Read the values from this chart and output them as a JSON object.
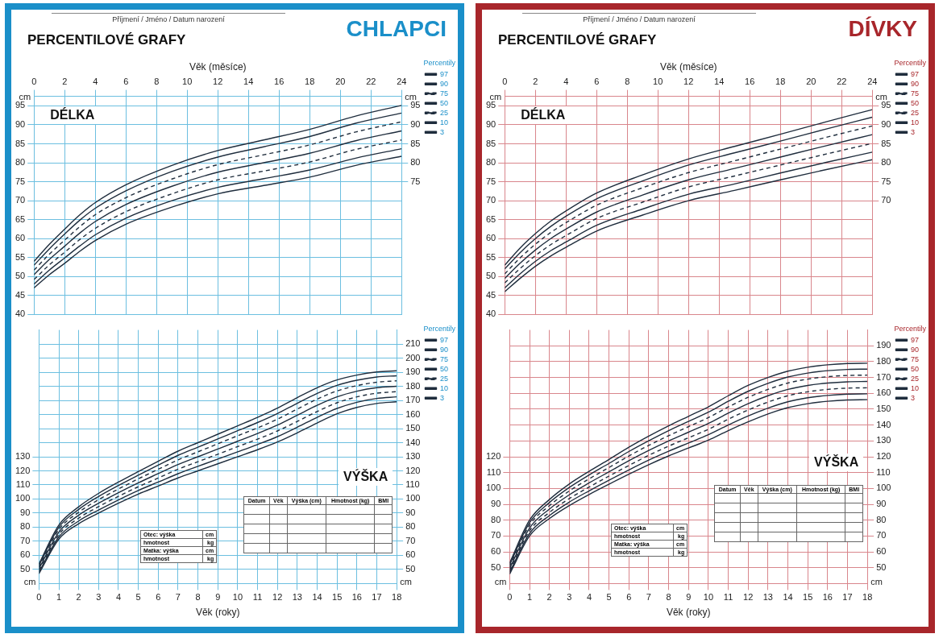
{
  "chart_data": [
    {
      "type": "line",
      "title": "PERCENTILOVÉ GRAFY",
      "subtitle": "CHLAPCI",
      "xlabel": "Věk (měsíce)",
      "ylabel": "cm",
      "y2label": "cm",
      "legend_title": "Percentily",
      "annotations": [
        "Příjmení / Jméno / Datum narození",
        "DÉLKA"
      ],
      "x": [
        0,
        1,
        2,
        3,
        4,
        6,
        9,
        12,
        15,
        18,
        21,
        24
      ],
      "xlim": [
        0,
        24
      ],
      "xticks": [
        0,
        2,
        4,
        6,
        8,
        10,
        12,
        14,
        16,
        18,
        20,
        22,
        24
      ],
      "ylim": [
        40,
        97.5
      ],
      "yticks": [
        40,
        45,
        50,
        55,
        60,
        65,
        70,
        75,
        80,
        85,
        90,
        95
      ],
      "y2lim": [
        40,
        97.5
      ],
      "y2ticks": [
        75,
        80,
        85,
        90,
        95
      ],
      "grid": true,
      "legend": "right",
      "series": [
        {
          "name": "97",
          "color": "#1f2d3d",
          "values": [
            54,
            58.5,
            62.5,
            66.3,
            69.5,
            74.2,
            79.3,
            83.2,
            86,
            88.8,
            92.3,
            95.1
          ]
        },
        {
          "name": "90",
          "color": "#1f2d3d",
          "values": [
            53,
            57.3,
            61.2,
            64.9,
            68,
            72.6,
            77.7,
            81.5,
            84.2,
            86.9,
            90.4,
            93.1
          ]
        },
        {
          "name": "75",
          "color": "#1f2d3d",
          "line_style": "dashed",
          "values": [
            51.7,
            55.9,
            59.6,
            63.2,
            66.3,
            70.8,
            75.7,
            79.5,
            82.1,
            84.7,
            88.1,
            90.8
          ]
        },
        {
          "name": "50",
          "color": "#1f2d3d",
          "values": [
            50.5,
            54.5,
            58,
            61.5,
            64.5,
            69,
            73.8,
            77.5,
            80,
            82.5,
            85.8,
            88.4
          ]
        },
        {
          "name": "25",
          "color": "#1f2d3d",
          "line_style": "dashed",
          "values": [
            49.2,
            53.1,
            56.4,
            59.8,
            62.7,
            67.1,
            71.8,
            75.5,
            77.8,
            80.2,
            83.5,
            86
          ]
        },
        {
          "name": "10",
          "color": "#1f2d3d",
          "values": [
            48,
            51.7,
            54.9,
            58.1,
            61,
            65.4,
            70,
            73.5,
            75.8,
            78.1,
            81.2,
            83.7
          ]
        },
        {
          "name": "3",
          "color": "#1f2d3d",
          "values": [
            47,
            50.5,
            53.5,
            56.7,
            59.5,
            63.8,
            68.3,
            71.8,
            74,
            76.2,
            79.3,
            81.7
          ]
        }
      ]
    },
    {
      "type": "line",
      "title": "VÝŠKA",
      "xlabel": "Věk (roky)",
      "ylabel": "cm",
      "y2label": "cm",
      "legend_title": "Percentily",
      "annotations": [
        "Datum",
        "Věk",
        "Výška (cm)",
        "Hmotnost (kg)",
        "BMI",
        "Otec: výška",
        "cm",
        "hmotnost",
        "kg",
        "Matka: výška",
        "cm",
        "hmotnost",
        "kg"
      ],
      "x": [
        0,
        1,
        2,
        3,
        4,
        5,
        6,
        7,
        8,
        9,
        10,
        11,
        12,
        13,
        14,
        15,
        16,
        17,
        18
      ],
      "xlim": [
        0,
        18
      ],
      "xticks": [
        0,
        1,
        2,
        3,
        4,
        5,
        6,
        7,
        8,
        9,
        10,
        11,
        12,
        13,
        14,
        15,
        16,
        17,
        18
      ],
      "ylim": [
        40,
        220
      ],
      "yticks": [
        50,
        60,
        70,
        80,
        90,
        100,
        110,
        120,
        130
      ],
      "y2lim": [
        40,
        220
      ],
      "y2ticks": [
        50,
        60,
        70,
        80,
        90,
        100,
        110,
        120,
        130,
        140,
        150,
        160,
        170,
        180,
        190,
        200,
        210
      ],
      "grid": true,
      "legend": "right",
      "series": [
        {
          "name": "97",
          "color": "#1f2d3d",
          "values": [
            54,
            81.5,
            94.5,
            104,
            112,
            119.5,
            126.8,
            134,
            140,
            146,
            152,
            158,
            164.5,
            172,
            179,
            184.5,
            188,
            190.2,
            191
          ]
        },
        {
          "name": "90",
          "color": "#1f2d3d",
          "values": [
            52.9,
            79.9,
            92.6,
            101.8,
            109.6,
            116.9,
            124,
            131,
            136.8,
            142.6,
            148.5,
            154.3,
            160.7,
            168,
            175,
            180.7,
            184.3,
            186.6,
            187.5
          ]
        },
        {
          "name": "75",
          "color": "#1f2d3d",
          "line_style": "dashed",
          "values": [
            51.7,
            78.3,
            90.6,
            99.5,
            107.1,
            114.3,
            121.1,
            127.8,
            133.5,
            139.2,
            144.9,
            150.5,
            156.7,
            163.9,
            170.9,
            176.7,
            180.5,
            182.9,
            183.9
          ]
        },
        {
          "name": "50",
          "color": "#1f2d3d",
          "values": [
            50.5,
            76.5,
            88.5,
            97,
            104.5,
            111.5,
            118,
            124.5,
            130,
            135.5,
            141,
            146.5,
            152.5,
            159.5,
            166.5,
            172.5,
            176.5,
            179,
            180
          ]
        },
        {
          "name": "25",
          "color": "#1f2d3d",
          "line_style": "dashed",
          "values": [
            49.3,
            74.8,
            86.4,
            94.6,
            101.9,
            108.7,
            114.9,
            121.2,
            126.5,
            131.8,
            137.2,
            142.5,
            148.3,
            155.1,
            162.1,
            168.3,
            172.5,
            175.1,
            176.2
          ]
        },
        {
          "name": "10",
          "color": "#1f2d3d",
          "values": [
            48.1,
            73.1,
            84.4,
            92.2,
            99.4,
            106.1,
            112,
            118,
            123.2,
            128.4,
            133.5,
            138.7,
            144.3,
            151,
            158,
            164.3,
            168.7,
            171.4,
            172.5
          ]
        },
        {
          "name": "3",
          "color": "#1f2d3d",
          "values": [
            47,
            71.5,
            82.5,
            90,
            97,
            103.5,
            109.2,
            115,
            120,
            125,
            130,
            135,
            140.5,
            147,
            154,
            160.5,
            165,
            167.8,
            169
          ]
        }
      ]
    },
    {
      "type": "line",
      "title": "PERCENTILOVÉ GRAFY",
      "subtitle": "DÍVKY",
      "xlabel": "Věk (měsíce)",
      "ylabel": "cm",
      "y2label": "cm",
      "legend_title": "Percentily",
      "annotations": [
        "Příjmení / Jméno / Datum narození",
        "DÉLKA"
      ],
      "x": [
        0,
        1,
        2,
        3,
        4,
        6,
        9,
        12,
        15,
        18,
        21,
        24
      ],
      "xlim": [
        0,
        24
      ],
      "xticks": [
        0,
        2,
        4,
        6,
        8,
        10,
        12,
        14,
        16,
        18,
        20,
        22,
        24
      ],
      "ylim": [
        40,
        97.5
      ],
      "yticks": [
        40,
        45,
        50,
        55,
        60,
        65,
        70,
        75,
        80,
        85,
        90,
        95
      ],
      "y2lim": [
        40,
        97.5
      ],
      "y2ticks": [
        70,
        75,
        80,
        85,
        90,
        95
      ],
      "grid": true,
      "legend": "right",
      "series": [
        {
          "name": "97",
          "color": "#1f2d3d",
          "values": [
            53,
            57.5,
            61.3,
            64.6,
            67.3,
            72,
            76.8,
            81,
            84.3,
            87.5,
            90.8,
            94
          ]
        },
        {
          "name": "90",
          "color": "#1f2d3d",
          "values": [
            52,
            56.3,
            60,
            63.2,
            65.9,
            70.5,
            75.2,
            79.4,
            82.6,
            85.7,
            88.9,
            92
          ]
        },
        {
          "name": "75",
          "color": "#1f2d3d",
          "line_style": "dashed",
          "values": [
            50.7,
            54.9,
            58.5,
            61.6,
            64.2,
            68.8,
            73.4,
            77.4,
            80.5,
            83.6,
            86.7,
            89.7
          ]
        },
        {
          "name": "50",
          "color": "#1f2d3d",
          "values": [
            49.5,
            53.5,
            57,
            60,
            62.5,
            67,
            71.5,
            75.5,
            78.5,
            81.5,
            84.5,
            87.4
          ]
        },
        {
          "name": "25",
          "color": "#1f2d3d",
          "line_style": "dashed",
          "values": [
            48.3,
            52.1,
            55.5,
            58.4,
            60.8,
            65.3,
            69.6,
            73.6,
            76.5,
            79.4,
            82.3,
            85.1
          ]
        },
        {
          "name": "10",
          "color": "#1f2d3d",
          "values": [
            47,
            50.7,
            54,
            56.8,
            59.1,
            63.5,
            67.8,
            71.7,
            74.4,
            77.3,
            80.1,
            82.8
          ]
        },
        {
          "name": "3",
          "color": "#1f2d3d",
          "values": [
            46,
            49.5,
            52.7,
            55.4,
            57.7,
            62,
            66.2,
            70,
            72.7,
            75.5,
            78.2,
            80.8
          ]
        }
      ]
    },
    {
      "type": "line",
      "title": "VÝŠKA",
      "xlabel": "Věk (roky)",
      "ylabel": "cm",
      "y2label": "cm",
      "legend_title": "Percentily",
      "annotations": [
        "Datum",
        "Věk",
        "Výška (cm)",
        "Hmotnost (kg)",
        "BMI",
        "Otec: výška",
        "cm",
        "hmotnost",
        "kg",
        "Matka: výška",
        "cm",
        "hmotnost",
        "kg"
      ],
      "x": [
        0,
        1,
        2,
        3,
        4,
        5,
        6,
        7,
        8,
        9,
        10,
        11,
        12,
        13,
        14,
        15,
        16,
        17,
        18
      ],
      "xlim": [
        0,
        18
      ],
      "xticks": [
        0,
        1,
        2,
        3,
        4,
        5,
        6,
        7,
        8,
        9,
        10,
        11,
        12,
        13,
        14,
        15,
        16,
        17,
        18
      ],
      "ylim": [
        40,
        200
      ],
      "yticks": [
        50,
        60,
        70,
        80,
        90,
        100,
        110,
        120
      ],
      "y2lim": [
        40,
        200
      ],
      "y2ticks": [
        50,
        60,
        70,
        80,
        90,
        100,
        110,
        120,
        130,
        140,
        150,
        160,
        170,
        180,
        190
      ],
      "grid": true,
      "legend": "right",
      "series": [
        {
          "name": "97",
          "color": "#1f2d3d",
          "values": [
            53,
            80,
            93,
            102.8,
            110.8,
            118.3,
            126,
            133,
            139.5,
            145.5,
            151.5,
            158.5,
            165,
            170,
            174,
            176.5,
            178,
            178.8,
            179
          ]
        },
        {
          "name": "90",
          "color": "#1f2d3d",
          "values": [
            51.9,
            78.4,
            91.1,
            100.6,
            108.5,
            115.8,
            123.3,
            130.1,
            136.5,
            142.3,
            148.1,
            155,
            161.3,
            166.3,
            170.3,
            172.8,
            174.3,
            175.1,
            175.3
          ]
        },
        {
          "name": "75",
          "color": "#1f2d3d",
          "line_style": "dashed",
          "values": [
            50.7,
            76.8,
            89.1,
            98.4,
            106.1,
            113.2,
            120.5,
            127.2,
            133.3,
            139,
            144.7,
            151.4,
            157.5,
            162.5,
            166.5,
            169,
            170.5,
            171.3,
            171.5
          ]
        },
        {
          "name": "50",
          "color": "#1f2d3d",
          "values": [
            49.5,
            75,
            87,
            96,
            103.5,
            110.5,
            117.5,
            124,
            130,
            135.5,
            141,
            147.5,
            153.5,
            158.5,
            162.5,
            165,
            166.5,
            167.3,
            167.5
          ]
        },
        {
          "name": "25",
          "color": "#1f2d3d",
          "line_style": "dashed",
          "values": [
            48.3,
            73.3,
            84.9,
            93.6,
            100.9,
            107.8,
            114.5,
            120.9,
            126.7,
            132,
            137.3,
            143.7,
            149.5,
            154.5,
            158.5,
            161,
            162.5,
            163.3,
            163.5
          ]
        },
        {
          "name": "10",
          "color": "#1f2d3d",
          "values": [
            47.1,
            71.6,
            82.9,
            91.4,
            98.5,
            105.2,
            111.7,
            117.9,
            123.5,
            128.7,
            133.9,
            140,
            145.7,
            150.7,
            154.7,
            157.2,
            158.7,
            159.5,
            159.7
          ]
        },
        {
          "name": "3",
          "color": "#1f2d3d",
          "values": [
            46,
            70,
            81,
            89.2,
            96.2,
            102.7,
            109,
            115,
            120.5,
            125.5,
            130.5,
            136.5,
            142,
            147,
            151,
            153.5,
            155,
            155.8,
            156
          ]
        }
      ]
    }
  ]
}
